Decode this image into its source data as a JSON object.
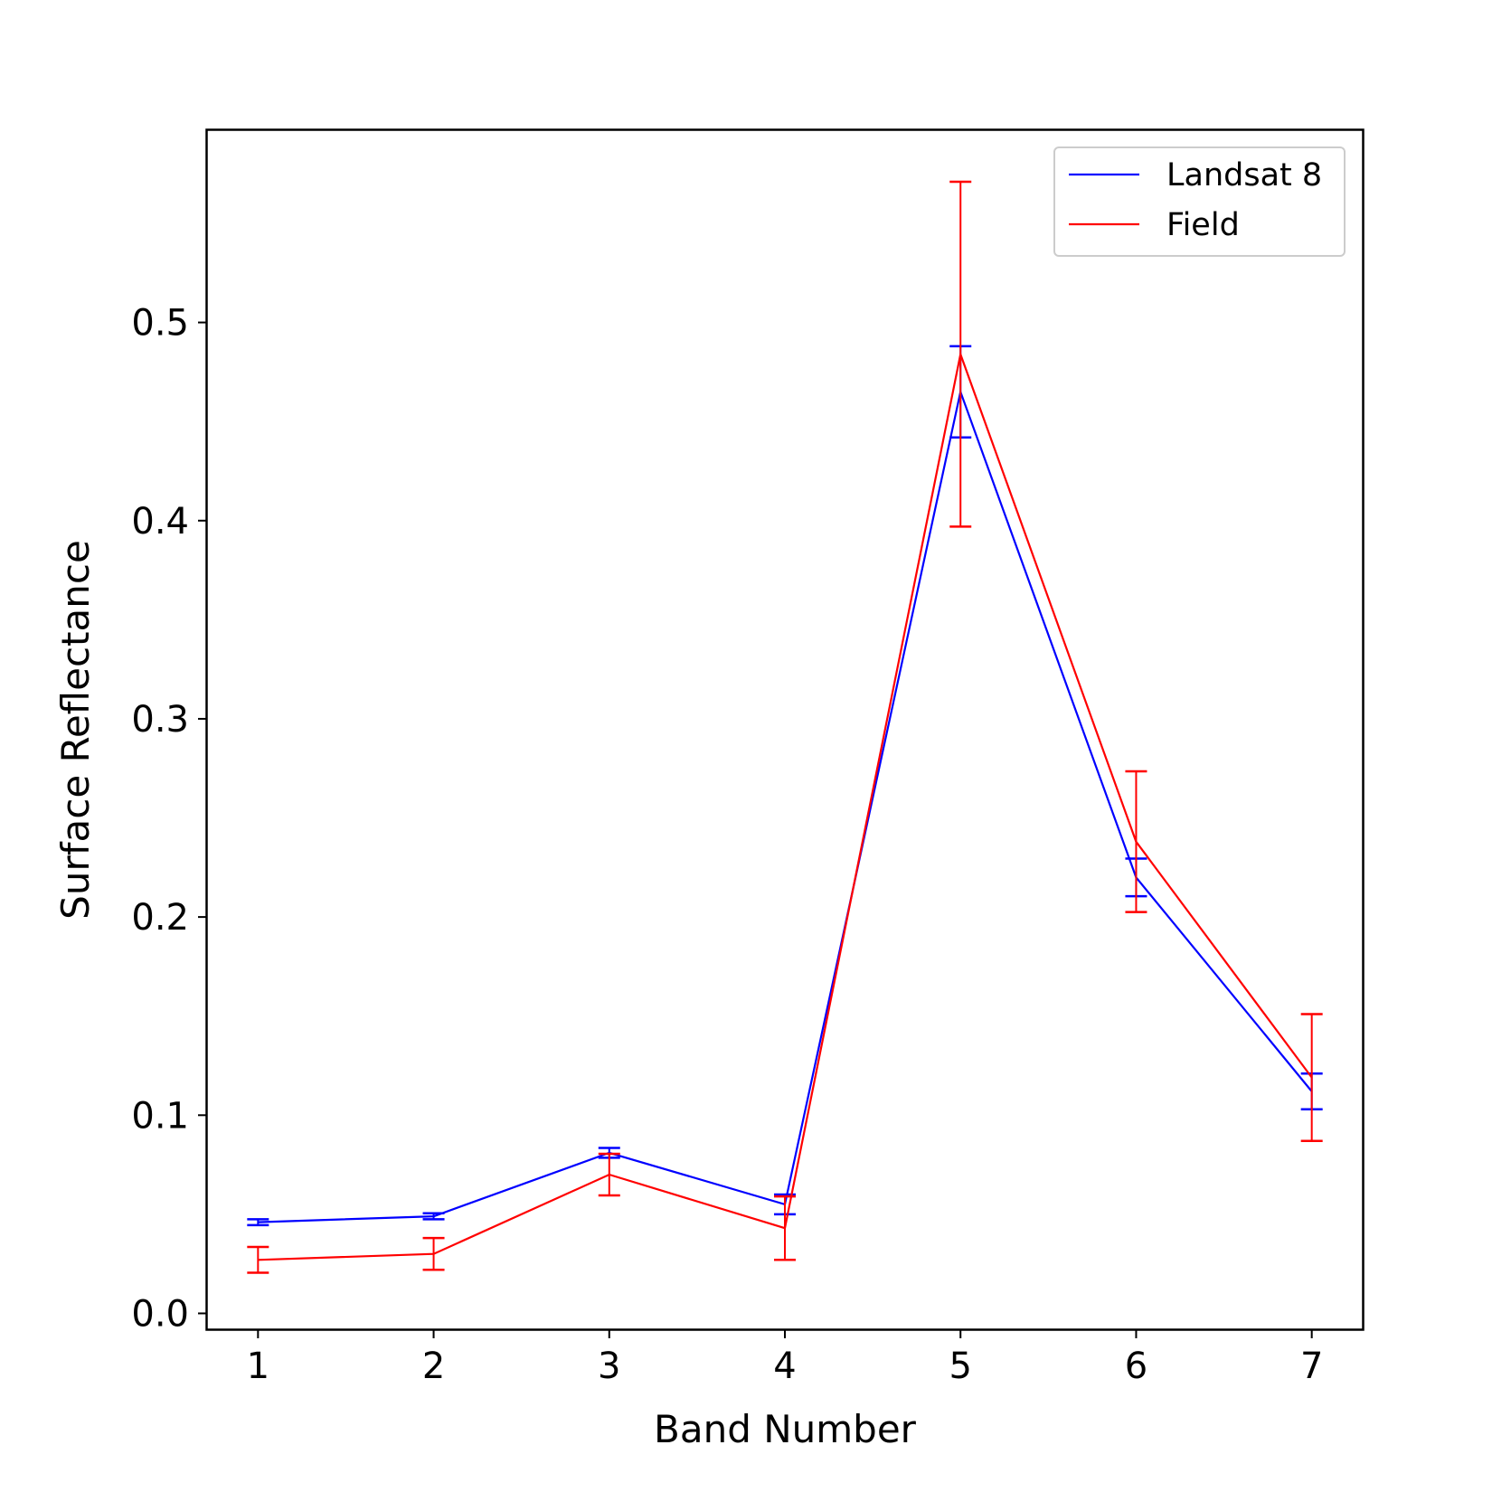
{
  "chart_data": {
    "type": "line",
    "xlabel": "Band Number",
    "ylabel": "Surface Reflectance",
    "x": [
      1,
      2,
      3,
      4,
      5,
      6,
      7
    ],
    "xticks": [
      "1",
      "2",
      "3",
      "4",
      "5",
      "6",
      "7"
    ],
    "yticks": [
      "0.0",
      "0.1",
      "0.2",
      "0.3",
      "0.4",
      "0.5"
    ],
    "xlim": [
      0.71,
      7.29
    ],
    "ylim": [
      -0.008,
      0.597
    ],
    "grid": false,
    "legend_position": "top-right",
    "series": [
      {
        "name": "Landsat 8",
        "color": "#0000ff",
        "values": [
          0.046,
          0.049,
          0.081,
          0.055,
          0.465,
          0.22,
          0.112
        ],
        "errors": [
          0.0015,
          0.0015,
          0.0025,
          0.005,
          0.023,
          0.0095,
          0.009
        ]
      },
      {
        "name": "Field",
        "color": "#ff0000",
        "values": [
          0.027,
          0.03,
          0.07,
          0.043,
          0.484,
          0.238,
          0.119
        ],
        "errors": [
          0.0065,
          0.008,
          0.0105,
          0.016,
          0.087,
          0.0355,
          0.032
        ]
      }
    ]
  }
}
